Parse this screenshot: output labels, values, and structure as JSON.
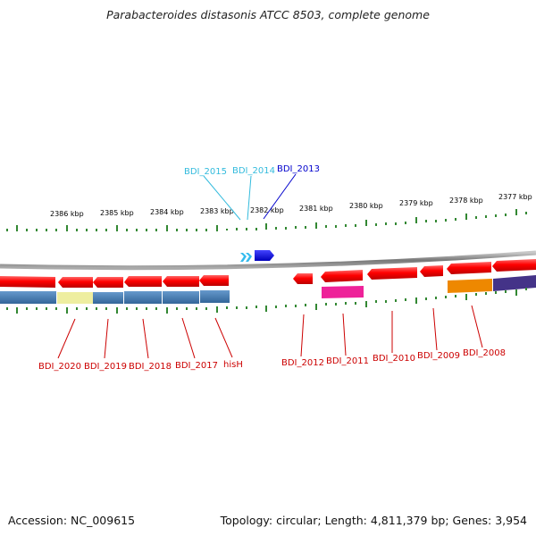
{
  "title": "Parabacteroides distasonis ATCC 8503, complete genome",
  "footer": {
    "accession": "Accession: NC_009615",
    "summary": "Topology: circular; Length: 4,811,379 bp; Genes: 3,954"
  },
  "ruler_labels": [
    "2386 kbp",
    "2385 kbp",
    "2384 kbp",
    "2383 kbp",
    "2382 kbp",
    "2381 kbp",
    "2380 kbp",
    "2379 kbp",
    "2378 kbp",
    "2377 kbp"
  ],
  "genes_above": [
    {
      "label": "BDI_2015",
      "color": "#33bbdd"
    },
    {
      "label": "BDI_2014",
      "color": "#33bbdd"
    },
    {
      "label": "BDI_2013",
      "color": "#0000cc"
    }
  ],
  "genes_below": [
    {
      "label": "BDI_2020",
      "color": "#cc0000"
    },
    {
      "label": "BDI_2019",
      "color": "#cc0000"
    },
    {
      "label": "BDI_2018",
      "color": "#cc0000"
    },
    {
      "label": "BDI_2017",
      "color": "#cc0000"
    },
    {
      "label": "hisH",
      "color": "#cc0000"
    },
    {
      "label": "BDI_2012",
      "color": "#cc0000"
    },
    {
      "label": "BDI_2011",
      "color": "#cc0000"
    },
    {
      "label": "BDI_2010",
      "color": "#cc0000"
    },
    {
      "label": "BDI_2009",
      "color": "#cc0000"
    },
    {
      "label": "BDI_2008",
      "color": "#cc0000"
    }
  ],
  "colors": {
    "forward_gene": "#0000ee",
    "small_forward_gene": "#33bbee",
    "reverse_gene": "#ee0000",
    "backbone": "#999999",
    "tick": "#338833"
  }
}
